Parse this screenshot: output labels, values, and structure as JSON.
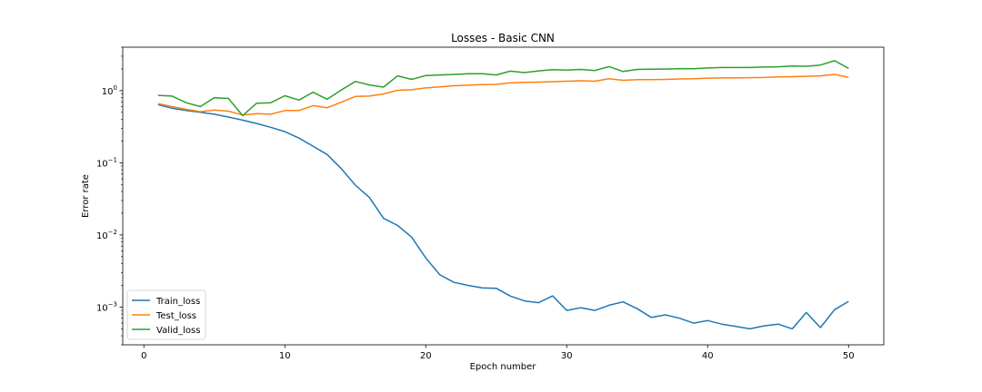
{
  "chart_data": {
    "type": "line",
    "title": "Losses - Basic CNN",
    "xlabel": "Epoch number",
    "ylabel": "Error rate",
    "yscale": "log",
    "xlim": [
      -1.5,
      52.5
    ],
    "ylim": [
      0.0003,
      4.0
    ],
    "xticks": [
      0,
      10,
      20,
      30,
      40,
      50
    ],
    "xtick_labels": [
      "0",
      "10",
      "20",
      "30",
      "40",
      "50"
    ],
    "yticks": [
      0.001,
      0.01,
      0.1,
      1
    ],
    "ytick_labels": [
      {
        "base": "10",
        "exp": "−3"
      },
      {
        "base": "10",
        "exp": "−2"
      },
      {
        "base": "10",
        "exp": "−1"
      },
      {
        "base": "10",
        "exp": "0"
      }
    ],
    "grid": false,
    "legend_position": "lower-left",
    "x": [
      1,
      2,
      3,
      4,
      5,
      6,
      7,
      8,
      9,
      10,
      11,
      12,
      13,
      14,
      15,
      16,
      17,
      18,
      19,
      20,
      21,
      22,
      23,
      24,
      25,
      26,
      27,
      28,
      29,
      30,
      31,
      32,
      33,
      34,
      35,
      36,
      37,
      38,
      39,
      40,
      41,
      42,
      43,
      44,
      45,
      46,
      47,
      48,
      49,
      50
    ],
    "series": [
      {
        "name": "Train_loss",
        "color": "#1f77b4",
        "values": [
          0.64,
          0.57,
          0.53,
          0.5,
          0.47,
          0.43,
          0.39,
          0.35,
          0.31,
          0.27,
          0.22,
          0.17,
          0.13,
          0.083,
          0.049,
          0.033,
          0.017,
          0.0135,
          0.0093,
          0.0048,
          0.0028,
          0.0022,
          0.002,
          0.00185,
          0.00182,
          0.00142,
          0.00122,
          0.00115,
          0.00143,
          0.0009,
          0.00098,
          0.0009,
          0.00106,
          0.00118,
          0.00095,
          0.00072,
          0.00078,
          0.0007,
          0.0006,
          0.00065,
          0.00058,
          0.00054,
          0.0005,
          0.00055,
          0.00058,
          0.0005,
          0.00084,
          0.00052,
          0.00092,
          0.0012
        ]
      },
      {
        "name": "Test_loss",
        "color": "#ff7f0e",
        "values": [
          0.66,
          0.6,
          0.55,
          0.51,
          0.54,
          0.52,
          0.46,
          0.48,
          0.47,
          0.53,
          0.53,
          0.62,
          0.58,
          0.69,
          0.83,
          0.84,
          0.9,
          1.01,
          1.03,
          1.09,
          1.13,
          1.17,
          1.19,
          1.21,
          1.22,
          1.28,
          1.3,
          1.31,
          1.33,
          1.35,
          1.37,
          1.35,
          1.46,
          1.39,
          1.42,
          1.42,
          1.43,
          1.45,
          1.46,
          1.49,
          1.5,
          1.5,
          1.51,
          1.52,
          1.55,
          1.56,
          1.58,
          1.6,
          1.68,
          1.53
        ]
      },
      {
        "name": "Valid_loss",
        "color": "#2ca02c",
        "values": [
          0.86,
          0.84,
          0.68,
          0.6,
          0.8,
          0.78,
          0.45,
          0.67,
          0.68,
          0.85,
          0.74,
          0.95,
          0.76,
          1.02,
          1.34,
          1.2,
          1.12,
          1.6,
          1.43,
          1.62,
          1.65,
          1.68,
          1.71,
          1.71,
          1.65,
          1.86,
          1.78,
          1.88,
          1.95,
          1.93,
          1.97,
          1.9,
          2.15,
          1.84,
          1.97,
          1.98,
          1.99,
          2.02,
          2.01,
          2.06,
          2.09,
          2.09,
          2.09,
          2.12,
          2.14,
          2.19,
          2.18,
          2.26,
          2.6,
          2.04
        ]
      }
    ]
  }
}
